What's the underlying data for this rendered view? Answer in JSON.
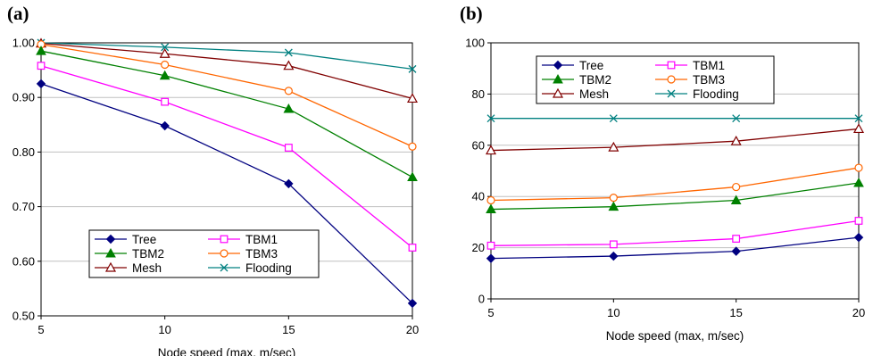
{
  "chart_data": [
    {
      "panel": "(a)",
      "type": "line",
      "x": [
        5,
        10,
        15,
        20
      ],
      "xlabel": "Node speed (max, m/sec)",
      "ylabel": "",
      "ylim": [
        0.5,
        1.0
      ],
      "yticks": [
        "0.50",
        "0.60",
        "0.70",
        "0.80",
        "0.90",
        "1.00"
      ],
      "xticks": [
        "5",
        "10",
        "15",
        "20"
      ],
      "grid": "horizontal",
      "legend_position": "bottom-left",
      "series": [
        {
          "name": "Tree",
          "color": "#000080",
          "marker": "diamond-filled",
          "values": [
            0.925,
            0.848,
            0.742,
            0.523
          ]
        },
        {
          "name": "TBM1",
          "color": "#ff00ff",
          "marker": "square-open",
          "values": [
            0.958,
            0.892,
            0.808,
            0.625
          ]
        },
        {
          "name": "TBM2",
          "color": "#008000",
          "marker": "triangle-filled",
          "values": [
            0.985,
            0.94,
            0.879,
            0.754
          ]
        },
        {
          "name": "TBM3",
          "color": "#ff6600",
          "marker": "circle-open",
          "values": [
            0.997,
            0.96,
            0.912,
            0.81
          ]
        },
        {
          "name": "Mesh",
          "color": "#800000",
          "marker": "triangle-open",
          "values": [
            0.999,
            0.98,
            0.958,
            0.898
          ]
        },
        {
          "name": "Flooding",
          "color": "#008080",
          "marker": "x",
          "values": [
            1.0,
            0.992,
            0.982,
            0.952
          ]
        }
      ]
    },
    {
      "panel": "(b)",
      "type": "line",
      "x": [
        5,
        10,
        15,
        20
      ],
      "xlabel": "Node speed (max, m/sec)",
      "ylabel": "",
      "ylim": [
        0,
        100
      ],
      "yticks": [
        "0",
        "20",
        "40",
        "60",
        "80",
        "100"
      ],
      "xticks": [
        "5",
        "10",
        "15",
        "20"
      ],
      "grid": "horizontal",
      "legend_position": "top-left",
      "series": [
        {
          "name": "Tree",
          "color": "#000080",
          "marker": "diamond-filled",
          "values": [
            15.8,
            16.7,
            18.6,
            24.0
          ]
        },
        {
          "name": "TBM1",
          "color": "#ff00ff",
          "marker": "square-open",
          "values": [
            20.8,
            21.3,
            23.5,
            30.5
          ]
        },
        {
          "name": "TBM2",
          "color": "#008000",
          "marker": "triangle-filled",
          "values": [
            35.0,
            36.0,
            38.5,
            45.3
          ]
        },
        {
          "name": "TBM3",
          "color": "#ff6600",
          "marker": "circle-open",
          "values": [
            38.5,
            39.5,
            43.7,
            51.2
          ]
        },
        {
          "name": "Mesh",
          "color": "#800000",
          "marker": "triangle-open",
          "values": [
            58.0,
            59.2,
            61.6,
            66.4
          ]
        },
        {
          "name": "Flooding",
          "color": "#008080",
          "marker": "x",
          "values": [
            70.5,
            70.5,
            70.5,
            70.5
          ]
        }
      ]
    }
  ]
}
